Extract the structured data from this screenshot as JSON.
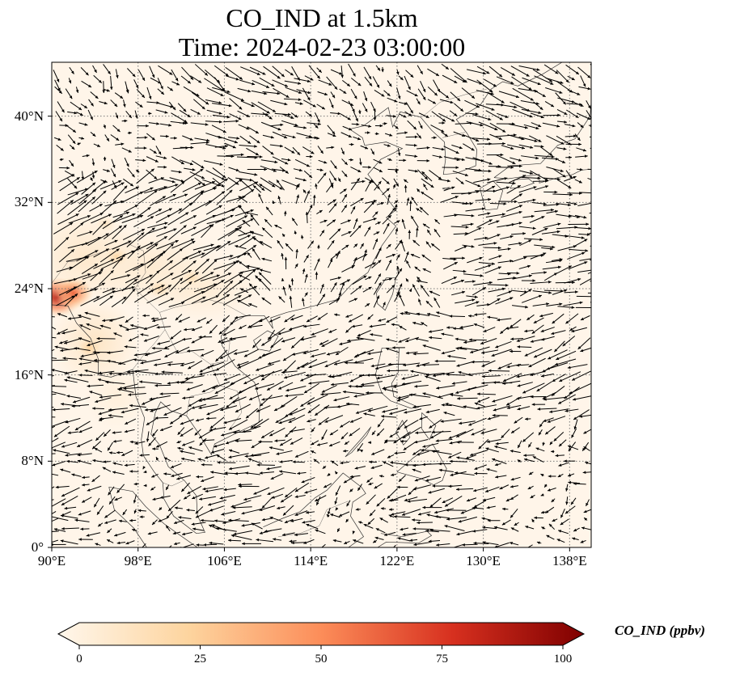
{
  "title": {
    "line1": "CO_IND at 1.5km",
    "line2": "Time: 2024-02-23 03:00:00"
  },
  "map": {
    "type": "filled-contour + wind vectors",
    "lon_range": [
      90,
      140
    ],
    "lat_range": [
      0,
      45
    ],
    "gridlines": "dotted",
    "lat_ticks": [
      {
        "value": 0,
        "label": "0°"
      },
      {
        "value": 8,
        "label": "8°N"
      },
      {
        "value": 16,
        "label": "16°N"
      },
      {
        "value": 24,
        "label": "24°N"
      },
      {
        "value": 32,
        "label": "32°N"
      },
      {
        "value": 40,
        "label": "40°N"
      }
    ],
    "lon_ticks": [
      {
        "value": 90,
        "label": "90°E"
      },
      {
        "value": 98,
        "label": "98°E"
      },
      {
        "value": 106,
        "label": "106°E"
      },
      {
        "value": 114,
        "label": "114°E"
      },
      {
        "value": 122,
        "label": "122°E"
      },
      {
        "value": 130,
        "label": "130°E"
      },
      {
        "value": 138,
        "label": "138°E"
      }
    ],
    "background_color": "#fff5e9",
    "hotspots": [
      {
        "lon": 90.5,
        "lat": 23.2,
        "value": 85
      },
      {
        "lon": 92,
        "lat": 23.6,
        "value": 60
      },
      {
        "lon": 93.5,
        "lat": 18.5,
        "value": 25
      },
      {
        "lon": 96,
        "lat": 27,
        "value": 22
      },
      {
        "lon": 100,
        "lat": 24,
        "value": 20
      },
      {
        "lon": 103,
        "lat": 25,
        "value": 18
      },
      {
        "lon": 95,
        "lat": 30,
        "value": 14
      }
    ]
  },
  "colorbar": {
    "label": "CO_IND (ppbv)",
    "colormap": "OrRd",
    "extend": "both",
    "range": [
      0,
      100
    ],
    "ticks": [
      {
        "value": 0,
        "label": "0"
      },
      {
        "value": 25,
        "label": "25"
      },
      {
        "value": 50,
        "label": "50"
      },
      {
        "value": 75,
        "label": "75"
      },
      {
        "value": 100,
        "label": "100"
      }
    ],
    "stops": [
      "#fff7ec",
      "#fdd49e",
      "#fc8d59",
      "#d7301f",
      "#7f0000"
    ]
  }
}
